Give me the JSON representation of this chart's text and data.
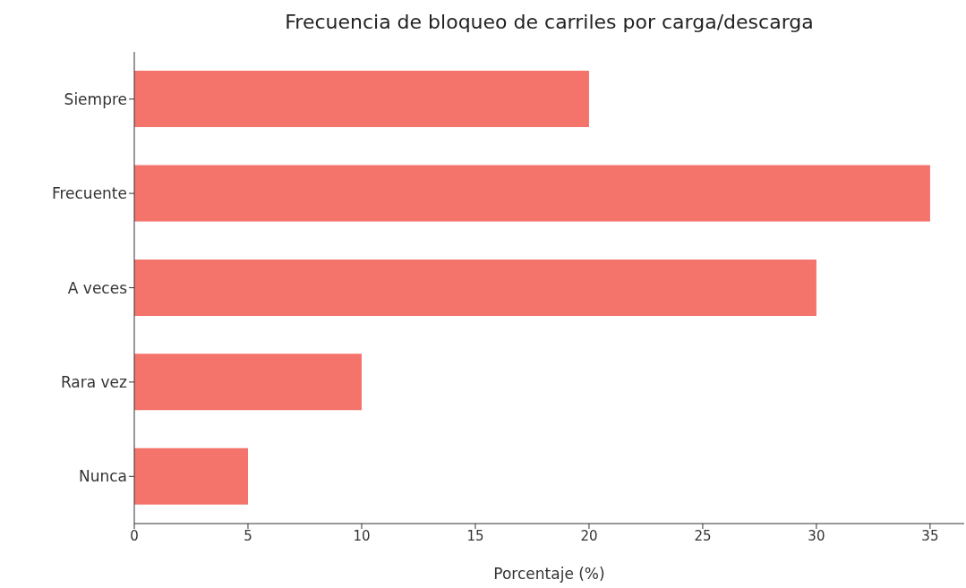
{
  "chart_data": {
    "type": "bar",
    "orientation": "horizontal",
    "title": "Frecuencia de bloqueo de carriles por carga/descarga",
    "xlabel": "Porcentaje (%)",
    "categories": [
      "Siempre",
      "Frecuente",
      "A veces",
      "Rara vez",
      "Nunca"
    ],
    "values": [
      20,
      35,
      30,
      10,
      5
    ],
    "color": "#f4736b",
    "xlim": [
      0,
      36.5
    ],
    "xticks": [
      0,
      5,
      10,
      15,
      20,
      25,
      30,
      35
    ],
    "grid": false,
    "legend": false
  }
}
